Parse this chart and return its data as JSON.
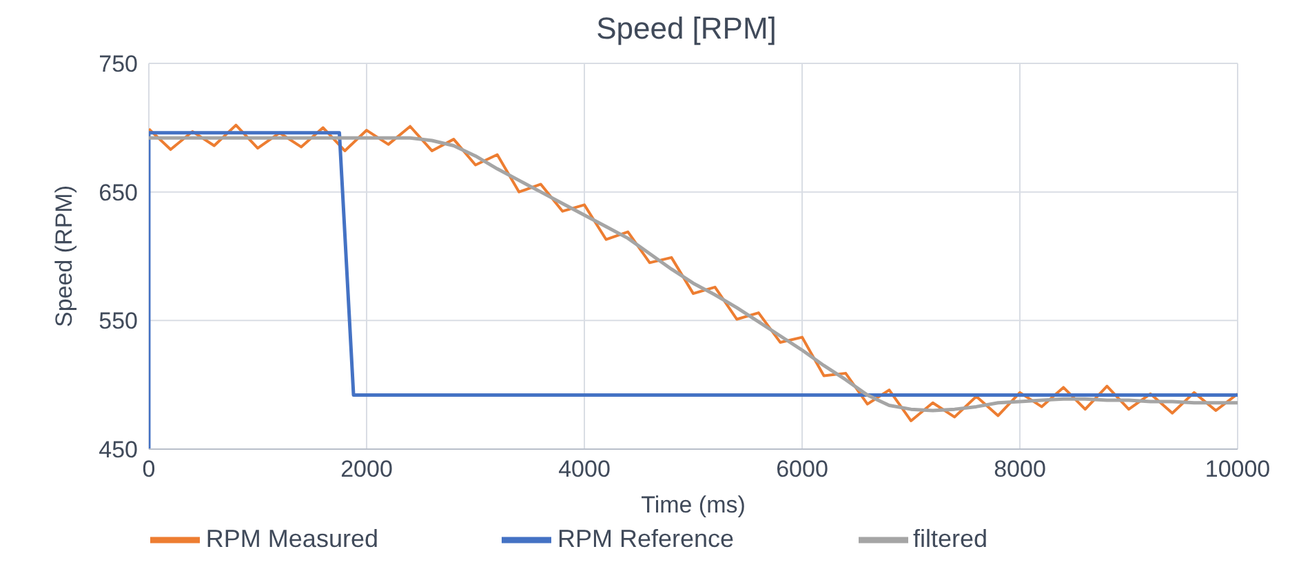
{
  "chart_data": {
    "type": "line",
    "title": "Speed [RPM]",
    "xlabel": "Time (ms)",
    "ylabel": "Speed (RPM)",
    "xlim": [
      0,
      10000
    ],
    "xticks": [
      0,
      2000,
      4000,
      6000,
      8000,
      10000
    ],
    "ylim": [
      450,
      750
    ],
    "yticks": [
      450,
      550,
      650,
      750
    ],
    "grid": true,
    "legend": "bottom",
    "marker": "none",
    "line_style": "solid",
    "series": [
      {
        "name": "RPM Measured",
        "color": "#ed7d31",
        "x": [
          0,
          200,
          400,
          600,
          800,
          1000,
          1200,
          1400,
          1600,
          1800,
          2000,
          2200,
          2400,
          2600,
          2800,
          3000,
          3200,
          3400,
          3600,
          3800,
          4000,
          4200,
          4400,
          4600,
          4800,
          5000,
          5200,
          5400,
          5600,
          5800,
          6000,
          6200,
          6400,
          6600,
          6800,
          7000,
          7200,
          7400,
          7600,
          7800,
          8000,
          8200,
          8400,
          8600,
          8800,
          9000,
          9200,
          9400,
          9600,
          9800,
          10000
        ],
        "values": [
          699,
          683,
          697,
          686,
          702,
          684,
          696,
          685,
          700,
          682,
          698,
          687,
          701,
          682,
          691,
          671,
          679,
          650,
          656,
          635,
          640,
          613,
          619,
          595,
          599,
          571,
          576,
          551,
          556,
          533,
          537,
          507,
          509,
          485,
          496,
          472,
          486,
          475,
          491,
          476,
          494,
          483,
          498,
          481,
          499,
          481,
          493,
          478,
          494,
          480,
          493
        ]
      },
      {
        "name": "RPM Reference",
        "color": "#4472c4",
        "x": [
          0,
          0,
          1750,
          1880,
          10000
        ],
        "values": [
          450,
          696,
          696,
          492,
          492
        ]
      },
      {
        "name": "filtered",
        "color": "#a5a5a5",
        "x": [
          0,
          600,
          1200,
          1800,
          2400,
          2600,
          2800,
          3000,
          3200,
          3400,
          3600,
          3800,
          4000,
          4200,
          4400,
          4600,
          4800,
          5000,
          5200,
          5400,
          5600,
          5800,
          6000,
          6200,
          6400,
          6600,
          6800,
          7000,
          7200,
          7400,
          7600,
          7800,
          8000,
          8200,
          8400,
          8600,
          8800,
          9000,
          9200,
          9400,
          9600,
          9800,
          10000
        ],
        "values": [
          692,
          692,
          692,
          692,
          692,
          690,
          686,
          678,
          668,
          659,
          650,
          641,
          632,
          623,
          614,
          602,
          590,
          579,
          570,
          560,
          549,
          538,
          527,
          515,
          504,
          492,
          484,
          481,
          480,
          481,
          483,
          486,
          487,
          488,
          489,
          489,
          488,
          488,
          487,
          487,
          486,
          486,
          486
        ]
      }
    ]
  }
}
